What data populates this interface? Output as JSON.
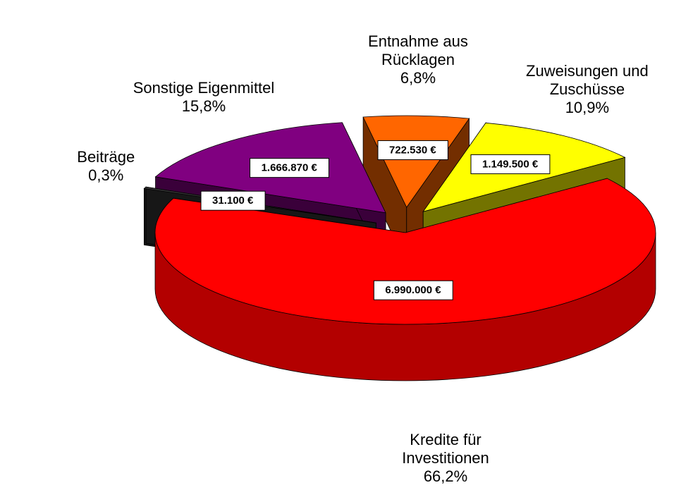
{
  "chart_data": {
    "type": "pie",
    "categories": [
      "Entnahme aus Rücklagen",
      "Zuweisungen und Zuschüsse",
      "Kredite für Investitionen",
      "Beiträge",
      "Sonstige Eigenmittel"
    ],
    "values": [
      6.8,
      10.9,
      66.2,
      0.3,
      15.8
    ],
    "value_labels": [
      "6,8%",
      "10,9%",
      "66,2%",
      "0,3%",
      "15,8%"
    ],
    "amounts": [
      722530,
      1149500,
      6990000,
      31100,
      1666870
    ],
    "amount_labels": [
      "722.530 €",
      "1.149.500 €",
      "6.990.000 €",
      "31.100 €",
      "1.666.870 €"
    ],
    "colors": [
      "#ff6600",
      "#ffff00",
      "#ff0000",
      "#333333",
      "#800080"
    ],
    "three_d": true
  }
}
